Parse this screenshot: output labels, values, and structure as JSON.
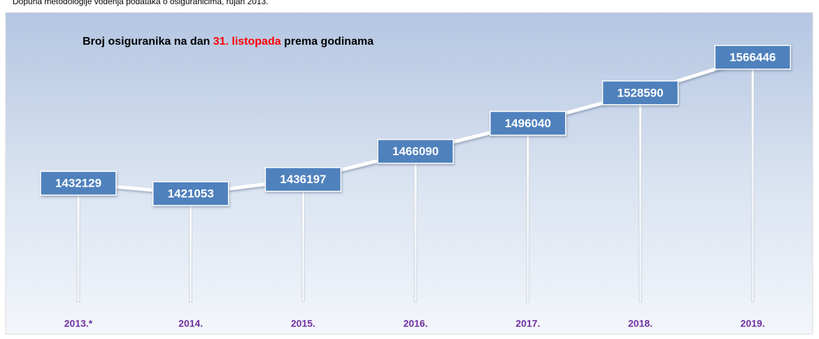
{
  "note": "Dopuna metodologije vođenja podataka o osiguranicima, rujan 2013.",
  "chart_data": {
    "type": "line",
    "title_parts": [
      "Broj osiguranika na dan ",
      "31. listopada",
      " prema godinama"
    ],
    "title_colors": [
      "#000000",
      "#ff0000",
      "#000000"
    ],
    "categories": [
      "2013.*",
      "2014.",
      "2015.",
      "2016.",
      "2017.",
      "2018.",
      "2019."
    ],
    "values": [
      1432129,
      1421053,
      1436197,
      1466090,
      1496040,
      1528590,
      1566446
    ],
    "color": "#ffffff",
    "label_color": "#4f81bd",
    "category_color": "#7030a0"
  }
}
